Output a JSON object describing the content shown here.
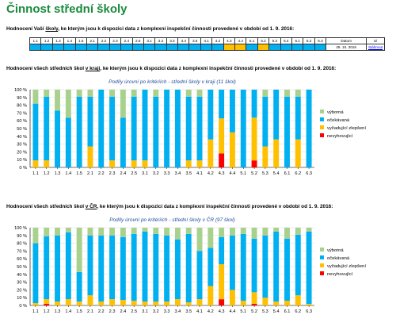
{
  "page_title": "Činnost střední školy",
  "section1": {
    "pre": "Hodnocení Vaší ",
    "link": "školy",
    "post": ", ke kterým jsou k dispozici data z komplexní inspekční činnosti provedené v období od 1. 9. 2016:"
  },
  "criteria_table": {
    "headers": [
      "1.1",
      "1.2",
      "1.3",
      "1.4",
      "1.5",
      "2.1",
      "2.2",
      "2.3",
      "2.4",
      "2.5",
      "3.1",
      "3.2",
      "3.3",
      "3.4",
      "3.5",
      "4.1",
      "4.2",
      "4.3",
      "4.4",
      "5.1",
      "5.2",
      "5.3",
      "5.4",
      "6.1",
      "6.2",
      "6.3"
    ],
    "datum_label": "Datum",
    "iz_label": "IZ",
    "value_colors": [
      "#00b0f0",
      "#00b0f0",
      "#00b0f0",
      "#00b0f0",
      "#00b0f0",
      "#00b0f0",
      "#00b0f0",
      "#00b0f0",
      "#00b0f0",
      "#00b0f0",
      "#00b0f0",
      "#00b0f0",
      "#00b0f0",
      "#00b0f0",
      "#00b0f0",
      "#00b0f0",
      "#00b0f0",
      "#ffc000",
      "#ffc000",
      "#00b0f0",
      "#ffc000",
      "#00b0f0",
      "#00b0f0",
      "#00b0f0",
      "#00b0f0",
      "#00b0f0"
    ],
    "date": "28. 10. 2016",
    "download": "Stáhnout"
  },
  "section2": {
    "pre": "Hodnocení všech středních škol ",
    "link": "v kraji",
    "post": ", ke kterým jsou k dispozici data z komplexní inspekční činnosti provedené v období od 1. 9. 2016:"
  },
  "section3": {
    "pre": "Hodnocení všech středních škol ",
    "link": "v ČR",
    "post": ", ke kterým jsou k dispozici data z komplexní inspekční činnosti provedené v období od 1. 9. 2016:"
  },
  "colors": {
    "vyborna": "#a9d18e",
    "ocekavana": "#00b0f0",
    "vyzadujici": "#ffc000",
    "nevyhovujici": "#ff0000",
    "title": "#1a8a3e",
    "chart_title": "#1f4e9c"
  },
  "chart_data": [
    {
      "type": "bar",
      "stacked": true,
      "title": "Podíly úrovní po kritériích - střední školy v kraji (11 škol)",
      "categories": [
        "1.1",
        "1.2",
        "1.3",
        "1.4",
        "1.5",
        "2.1",
        "2.2",
        "2.3",
        "2.4",
        "2.5",
        "3.1",
        "3.2",
        "3.3",
        "3.4",
        "3.5",
        "4.1",
        "4.2",
        "4.3",
        "4.4",
        "5.1",
        "5.2",
        "5.3",
        "5.4",
        "6.1",
        "6.2",
        "6.3"
      ],
      "y_ticks": [
        "0 %",
        "10 %",
        "20 %",
        "30 %",
        "40 %",
        "50 %",
        "60 %",
        "70 %",
        "80 %",
        "90 %",
        "100 %"
      ],
      "ylim": [
        0,
        100
      ],
      "legend_position": "right",
      "series": [
        {
          "name": "nevyhovující",
          "values": [
            0,
            0,
            0,
            0,
            0,
            0,
            0,
            0,
            0,
            0,
            0,
            0,
            0,
            0,
            0,
            0,
            0,
            18,
            0,
            0,
            9,
            0,
            0,
            0,
            0,
            0
          ]
        },
        {
          "name": "vyžadující zlepšení",
          "values": [
            9,
            9,
            0,
            0,
            0,
            27,
            0,
            9,
            0,
            9,
            9,
            0,
            0,
            0,
            9,
            9,
            36,
            45,
            45,
            0,
            55,
            27,
            36,
            0,
            36,
            0
          ]
        },
        {
          "name": "očekávaná",
          "values": [
            73,
            82,
            73,
            64,
            91,
            64,
            100,
            82,
            64,
            82,
            91,
            91,
            100,
            100,
            82,
            82,
            64,
            37,
            55,
            100,
            36,
            64,
            64,
            91,
            55,
            100
          ]
        },
        {
          "name": "výborná",
          "values": [
            18,
            9,
            27,
            36,
            9,
            9,
            0,
            9,
            36,
            9,
            0,
            9,
            0,
            0,
            9,
            9,
            0,
            0,
            0,
            0,
            0,
            9,
            0,
            9,
            9,
            0
          ]
        }
      ]
    },
    {
      "type": "bar",
      "stacked": true,
      "title": "Podíly úrovní po kritériích - střední školy v ČR (97 škol)",
      "categories": [
        "1.1",
        "1.2",
        "1.3",
        "1.4",
        "1.5",
        "2.1",
        "2.2",
        "2.3",
        "2.4",
        "2.5",
        "3.1",
        "3.2",
        "3.3",
        "3.4",
        "3.5",
        "4.1",
        "4.2",
        "4.3",
        "4.4",
        "5.1",
        "5.2",
        "5.3",
        "5.4",
        "6.1",
        "6.2",
        "6.3"
      ],
      "y_ticks": [
        "0 %",
        "10 %",
        "20 %",
        "30 %",
        "40 %",
        "50 %",
        "60 %",
        "70 %",
        "80 %",
        "90 %",
        "100 %"
      ],
      "ylim": [
        0,
        100
      ],
      "legend_position": "right",
      "series": [
        {
          "name": "nevyhovující",
          "values": [
            0,
            2,
            0,
            0,
            0,
            0,
            0,
            0,
            0,
            0,
            0,
            0,
            0,
            0,
            0,
            0,
            0,
            8,
            0,
            0,
            2,
            0,
            0,
            0,
            0,
            0
          ]
        },
        {
          "name": "vyžadující zlepšení",
          "values": [
            3,
            6,
            5,
            8,
            5,
            13,
            5,
            8,
            7,
            6,
            5,
            5,
            5,
            8,
            4,
            8,
            25,
            45,
            20,
            6,
            15,
            10,
            5,
            6,
            13,
            2
          ]
        },
        {
          "name": "očekávaná",
          "values": [
            77,
            81,
            85,
            86,
            38,
            77,
            85,
            82,
            81,
            86,
            90,
            87,
            85,
            77,
            88,
            62,
            49,
            35,
            70,
            86,
            69,
            80,
            90,
            80,
            78,
            93
          ]
        },
        {
          "name": "výborná",
          "values": [
            20,
            11,
            10,
            6,
            57,
            10,
            10,
            10,
            12,
            8,
            5,
            8,
            10,
            15,
            8,
            30,
            26,
            12,
            10,
            8,
            14,
            10,
            5,
            14,
            9,
            5
          ]
        }
      ]
    }
  ]
}
